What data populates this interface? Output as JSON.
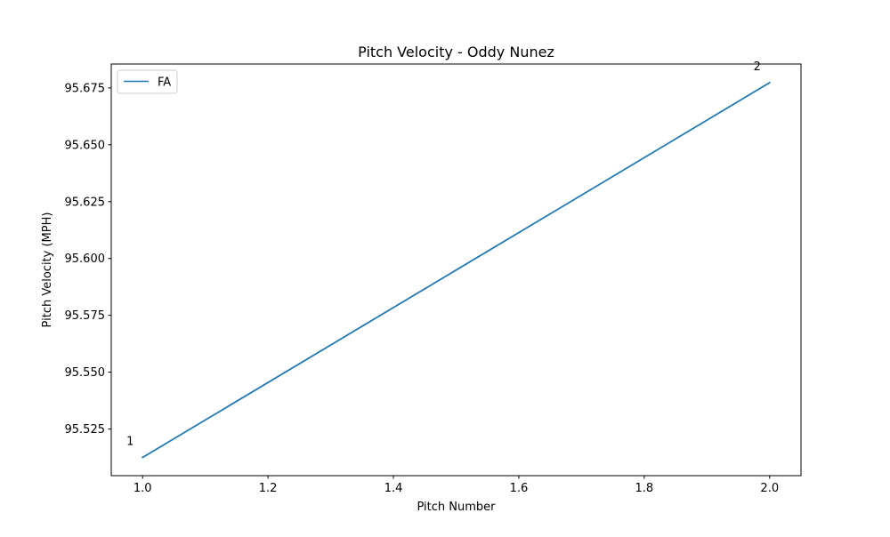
{
  "chart_data": {
    "type": "line",
    "title": "Pitch Velocity - Oddy Nunez",
    "xlabel": "Pitch Number",
    "ylabel": "Pitch Velocity (MPH)",
    "xlim": [
      0.95,
      2.05
    ],
    "ylim": [
      95.5045,
      95.6855
    ],
    "xticks": [
      1.0,
      1.2,
      1.4,
      1.6,
      1.8,
      2.0
    ],
    "xtick_labels": [
      "1.0",
      "1.2",
      "1.4",
      "1.6",
      "1.8",
      "2.0"
    ],
    "yticks": [
      95.525,
      95.55,
      95.575,
      95.6,
      95.625,
      95.65,
      95.675
    ],
    "ytick_labels": [
      "95.525",
      "95.550",
      "95.575",
      "95.600",
      "95.625",
      "95.650",
      "95.675"
    ],
    "grid": false,
    "legend": {
      "position": "top-left",
      "entries": [
        "FA"
      ]
    },
    "series": [
      {
        "name": "FA",
        "color": "#1f77b4",
        "x": [
          1,
          2
        ],
        "y": [
          95.5125,
          95.6773
        ]
      }
    ],
    "annotations": [
      {
        "text": "1",
        "x": 1,
        "y": 95.5125
      },
      {
        "text": "2",
        "x": 2,
        "y": 95.6773
      }
    ]
  }
}
